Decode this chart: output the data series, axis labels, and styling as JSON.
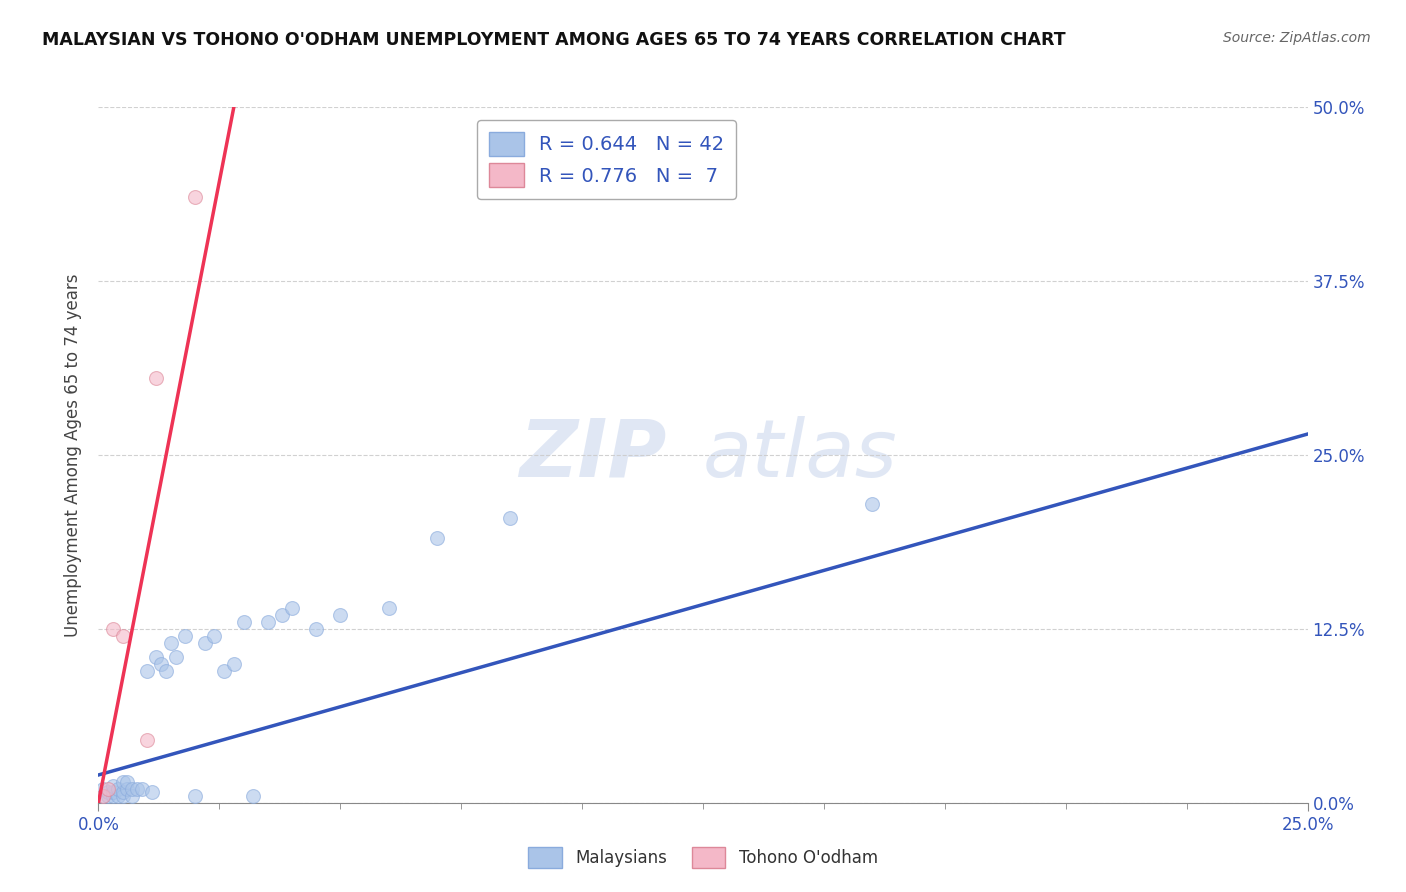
{
  "title": "MALAYSIAN VS TOHONO O'ODHAM UNEMPLOYMENT AMONG AGES 65 TO 74 YEARS CORRELATION CHART",
  "source": "Source: ZipAtlas.com",
  "ylabel_label": "Unemployment Among Ages 65 to 74 years",
  "xlim": [
    0.0,
    0.25
  ],
  "ylim": [
    0.0,
    0.5
  ],
  "watermark_left": "ZIP",
  "watermark_right": "atlas",
  "legend_R_blue": "0.644",
  "legend_N_blue": "42",
  "legend_R_pink": "0.776",
  "legend_N_pink": " 7",
  "blue_scatter_x": [
    0.001,
    0.001,
    0.002,
    0.002,
    0.003,
    0.003,
    0.003,
    0.004,
    0.004,
    0.005,
    0.005,
    0.005,
    0.006,
    0.006,
    0.007,
    0.007,
    0.008,
    0.009,
    0.01,
    0.011,
    0.012,
    0.013,
    0.014,
    0.015,
    0.016,
    0.018,
    0.02,
    0.022,
    0.024,
    0.026,
    0.028,
    0.03,
    0.032,
    0.035,
    0.038,
    0.04,
    0.045,
    0.05,
    0.06,
    0.07,
    0.085,
    0.16
  ],
  "blue_scatter_y": [
    0.005,
    0.01,
    0.005,
    0.008,
    0.005,
    0.008,
    0.012,
    0.005,
    0.01,
    0.005,
    0.008,
    0.015,
    0.01,
    0.015,
    0.005,
    0.01,
    0.01,
    0.01,
    0.095,
    0.008,
    0.105,
    0.1,
    0.095,
    0.115,
    0.105,
    0.12,
    0.005,
    0.115,
    0.12,
    0.095,
    0.1,
    0.13,
    0.005,
    0.13,
    0.135,
    0.14,
    0.125,
    0.135,
    0.14,
    0.19,
    0.205,
    0.215
  ],
  "pink_scatter_x": [
    0.001,
    0.002,
    0.003,
    0.005,
    0.01,
    0.012,
    0.02
  ],
  "pink_scatter_y": [
    0.005,
    0.01,
    0.125,
    0.12,
    0.045,
    0.305,
    0.435
  ],
  "blue_line_x": [
    0.0,
    0.25
  ],
  "blue_line_y": [
    0.02,
    0.265
  ],
  "pink_line_x": [
    0.0,
    0.028
  ],
  "pink_line_y": [
    0.0,
    0.5
  ],
  "blue_color": "#aac4e8",
  "pink_color": "#f4b8c8",
  "blue_line_color": "#3355bb",
  "pink_line_color": "#ee3355",
  "scatter_alpha": 0.6,
  "marker_size": 100,
  "background_color": "#ffffff",
  "grid_color": "#cccccc"
}
